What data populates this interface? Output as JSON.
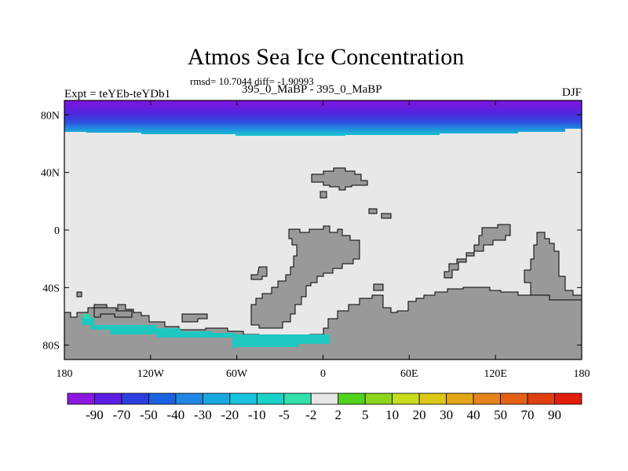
{
  "title": "Atmos Sea Ice Concentration",
  "subtitle": "rmsd= 10.7044 diff= -1.90993",
  "left_label": "Expt = teYEb-teYDb1",
  "center_label": "395_0_MaBP - 395_0_MaBP",
  "right_label": "DJF",
  "map": {
    "lon_range": [
      -180,
      180
    ],
    "lat_range": [
      -90,
      90
    ],
    "x_ticks": [
      {
        "lon": -180,
        "label": "180"
      },
      {
        "lon": -120,
        "label": "120W"
      },
      {
        "lon": -60,
        "label": "60W"
      },
      {
        "lon": 0,
        "label": "0"
      },
      {
        "lon": 60,
        "label": "60E"
      },
      {
        "lon": 120,
        "label": "120E"
      },
      {
        "lon": 180,
        "label": "180"
      }
    ],
    "y_ticks": [
      {
        "lat": 80,
        "label": "80N"
      },
      {
        "lat": 40,
        "label": "40N"
      },
      {
        "lat": 0,
        "label": "0"
      },
      {
        "lat": -40,
        "label": "40S"
      },
      {
        "lat": -80,
        "label": "80S"
      }
    ],
    "colors": {
      "ocean": "#e8e8e8",
      "land": "#999999",
      "outline": "#000000",
      "antarctic_ice": "#1ec8c0"
    }
  },
  "colorbar": {
    "labels": [
      "-90",
      "-70",
      "-50",
      "-40",
      "-30",
      "-20",
      "-10",
      "-5",
      "-2",
      "2",
      "5",
      "10",
      "20",
      "30",
      "40",
      "50",
      "70",
      "90"
    ],
    "colors": [
      "#8c17e0",
      "#5d1de2",
      "#2c3edf",
      "#1b62e0",
      "#1f86e3",
      "#18a9e0",
      "#19c3df",
      "#17d3c9",
      "#33e0a9",
      "#e6e6e6",
      "#52d31b",
      "#8bd61c",
      "#c7dc1b",
      "#dcc716",
      "#e2a516",
      "#e4841b",
      "#e46114",
      "#e13f0f",
      "#e01e0b"
    ]
  }
}
